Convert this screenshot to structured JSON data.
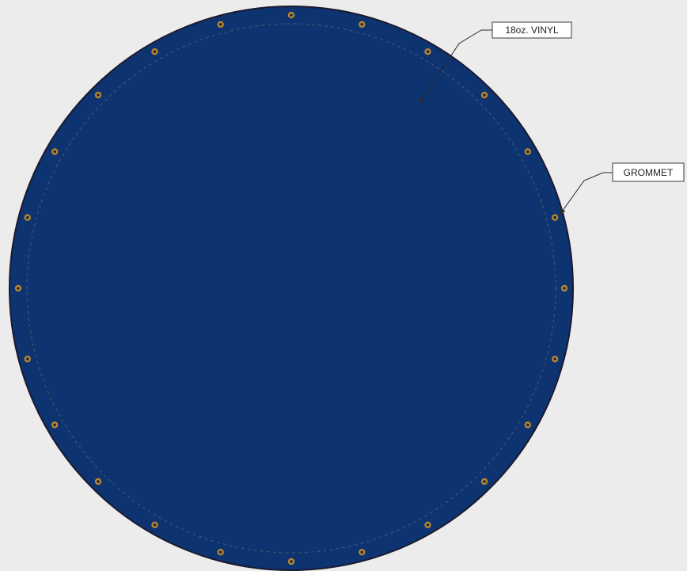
{
  "diagram": {
    "callouts": [
      {
        "id": "vinyl",
        "label": "18oz. VINYL"
      },
      {
        "id": "grommet",
        "label": "GROMMET"
      }
    ],
    "grommet_count": 24
  },
  "colors": {
    "background": "#ececec",
    "tarp_fill": "#0d3370",
    "tarp_edge": "#1a1a2e",
    "hem_stitch": "#3f5470",
    "grommet_ring": "#b8862e",
    "grommet_hole": "#1c2a40",
    "callout_box": "#ffffff",
    "leader_line": "#2a2a2a"
  }
}
